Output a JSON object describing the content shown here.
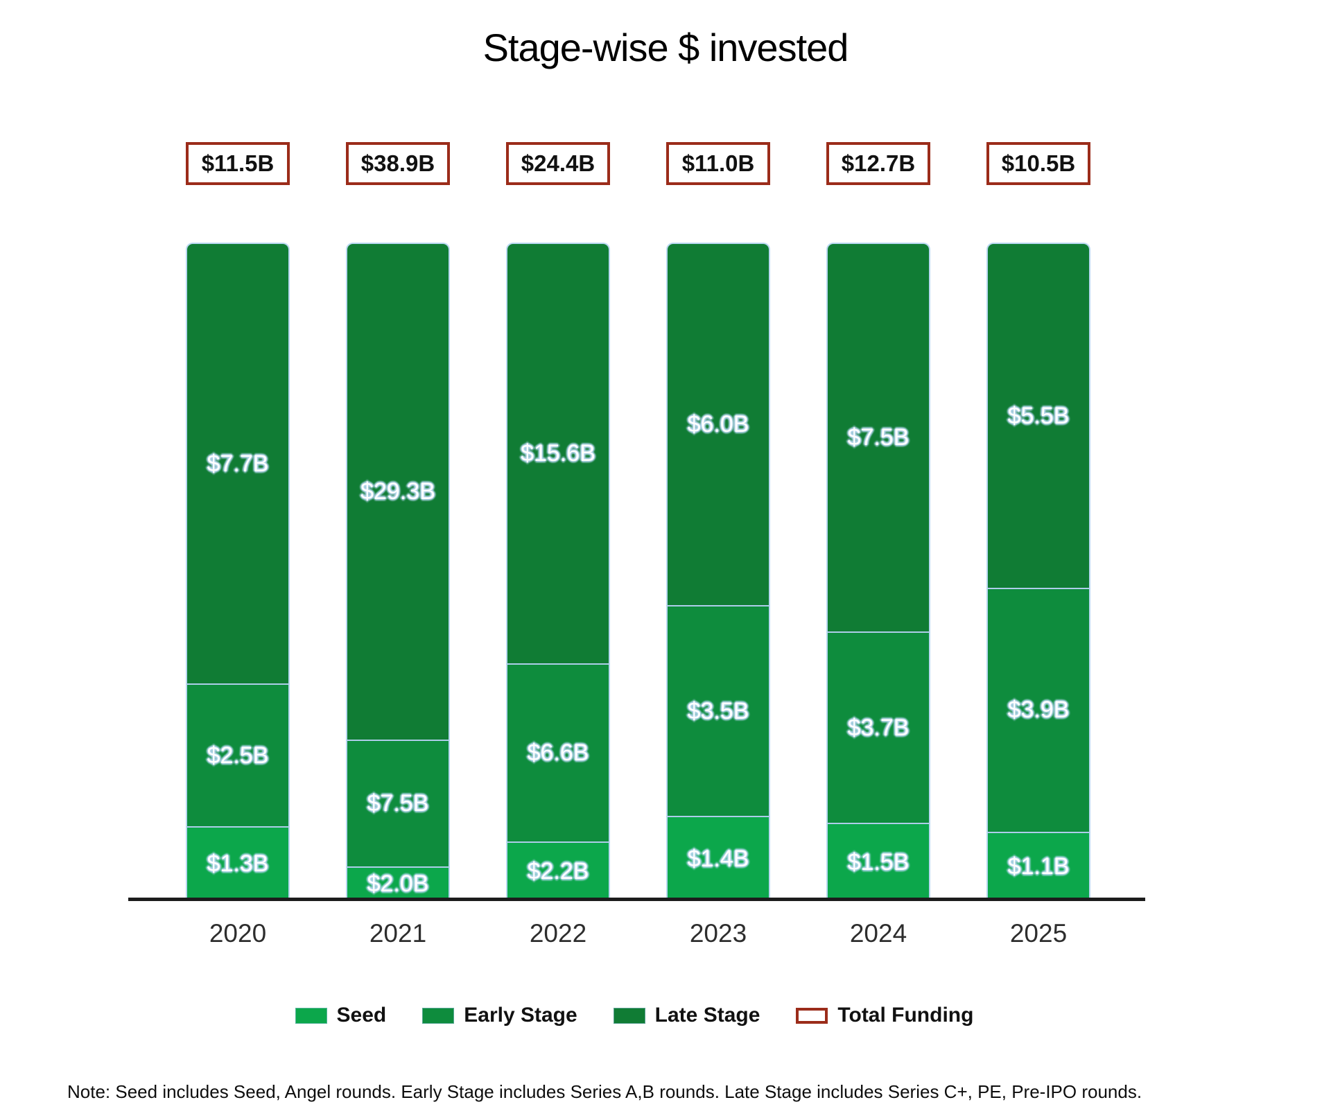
{
  "title": "Stage-wise $ invested",
  "note": "Note: Seed includes Seed, Angel rounds. Early Stage includes Series A,B rounds. Late Stage includes Series C+, PE, Pre-IPO rounds.",
  "colors": {
    "seed": "#0CA74B",
    "early_stage": "#0E8C3D",
    "late_stage": "#107C34",
    "total_funding_border": "#9B2C1A",
    "label_halo": "#b9d7f1",
    "axis": "#1c1c1c"
  },
  "legend": [
    {
      "label": "Seed",
      "color": "#0CA74B",
      "style": "fill"
    },
    {
      "label": "Early Stage",
      "color": "#0E8C3D",
      "style": "fill"
    },
    {
      "label": "Late Stage",
      "color": "#107C34",
      "style": "fill"
    },
    {
      "label": "Total Funding",
      "color": "#9B2C1A",
      "style": "outline"
    }
  ],
  "chart_data": {
    "type": "bar",
    "stacked": true,
    "normalized_100_percent": true,
    "title": "Stage-wise $ invested",
    "categories": [
      "2020",
      "2021",
      "2022",
      "2023",
      "2024",
      "2025"
    ],
    "totals": {
      "labels": [
        "$11.5B",
        "$38.9B",
        "$24.4B",
        "$11.0B",
        "$12.7B",
        "$10.5B"
      ],
      "values": [
        11.5,
        38.9,
        24.4,
        11.0,
        12.7,
        10.5
      ]
    },
    "series": [
      {
        "name": "Seed",
        "color": "#0CA74B",
        "values": [
          1.3,
          2.0,
          2.2,
          1.4,
          1.5,
          1.1
        ],
        "labels": [
          "$1.3B",
          "$2.0B",
          "$2.2B",
          "$1.4B",
          "$1.5B",
          "$1.1B"
        ]
      },
      {
        "name": "Early Stage",
        "color": "#0E8C3D",
        "values": [
          2.5,
          7.5,
          6.6,
          3.5,
          3.7,
          3.9
        ],
        "labels": [
          "$2.5B",
          "$7.5B",
          "$6.6B",
          "$3.5B",
          "$3.7B",
          "$3.9B"
        ]
      },
      {
        "name": "Late Stage",
        "color": "#107C34",
        "values": [
          7.7,
          29.3,
          15.6,
          6.0,
          7.5,
          5.5
        ],
        "labels": [
          "$7.7B",
          "$29.3B",
          "$15.6B",
          "$6.0B",
          "$7.5B",
          "$5.5B"
        ]
      }
    ],
    "legend_position": "bottom",
    "grid": false
  }
}
